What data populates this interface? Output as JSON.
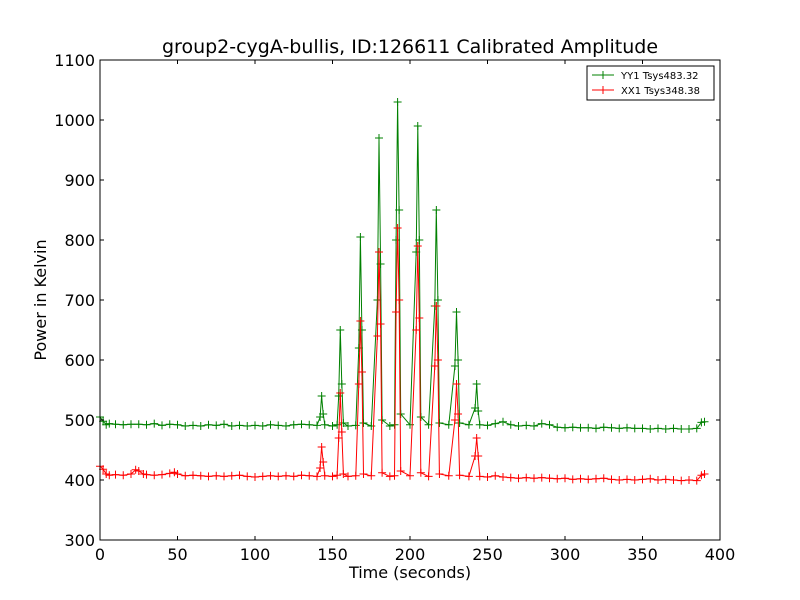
{
  "chart_data": {
    "type": "line",
    "title": "group2-cygA-bullis, ID:126611 Calibrated Amplitude",
    "xlabel": "Time (seconds)",
    "ylabel": "Power in Kelvin",
    "xlim": [
      0,
      400
    ],
    "ylim": [
      300,
      1100
    ],
    "xticks": [
      0,
      50,
      100,
      150,
      200,
      250,
      300,
      350,
      400
    ],
    "yticks": [
      300,
      400,
      500,
      600,
      700,
      800,
      900,
      1000,
      1100
    ],
    "grid": false,
    "legend_position": "top-right",
    "marker": "plus",
    "series": [
      {
        "name": "YY1 Tsys483.32",
        "color": "#008000",
        "points": [
          [
            0,
            505
          ],
          [
            2,
            498
          ],
          [
            4,
            492
          ],
          [
            6,
            494
          ],
          [
            10,
            493
          ],
          [
            15,
            492
          ],
          [
            20,
            493
          ],
          [
            25,
            493
          ],
          [
            30,
            492
          ],
          [
            35,
            494
          ],
          [
            40,
            491
          ],
          [
            45,
            493
          ],
          [
            50,
            492
          ],
          [
            55,
            490
          ],
          [
            60,
            491
          ],
          [
            65,
            490
          ],
          [
            70,
            492
          ],
          [
            75,
            491
          ],
          [
            80,
            493
          ],
          [
            85,
            490
          ],
          [
            90,
            491
          ],
          [
            95,
            490
          ],
          [
            100,
            491
          ],
          [
            105,
            490
          ],
          [
            110,
            492
          ],
          [
            115,
            491
          ],
          [
            120,
            490
          ],
          [
            125,
            492
          ],
          [
            130,
            493
          ],
          [
            135,
            492
          ],
          [
            140,
            491
          ],
          [
            142,
            505
          ],
          [
            143,
            540
          ],
          [
            144,
            510
          ],
          [
            145,
            492
          ],
          [
            150,
            490
          ],
          [
            153,
            492
          ],
          [
            154,
            540
          ],
          [
            155,
            650
          ],
          [
            156,
            560
          ],
          [
            157,
            495
          ],
          [
            160,
            490
          ],
          [
            165,
            491
          ],
          [
            167,
            620
          ],
          [
            168,
            805
          ],
          [
            169,
            650
          ],
          [
            170,
            495
          ],
          [
            175,
            490
          ],
          [
            179,
            700
          ],
          [
            180,
            970
          ],
          [
            181,
            760
          ],
          [
            182,
            500
          ],
          [
            187,
            490
          ],
          [
            190,
            492
          ],
          [
            191,
            800
          ],
          [
            192,
            1030
          ],
          [
            193,
            850
          ],
          [
            194,
            510
          ],
          [
            200,
            492
          ],
          [
            204,
            780
          ],
          [
            205,
            990
          ],
          [
            206,
            800
          ],
          [
            207,
            505
          ],
          [
            212,
            492
          ],
          [
            216,
            690
          ],
          [
            217,
            850
          ],
          [
            218,
            700
          ],
          [
            219,
            495
          ],
          [
            225,
            492
          ],
          [
            229,
            590
          ],
          [
            230,
            680
          ],
          [
            231,
            600
          ],
          [
            232,
            495
          ],
          [
            238,
            492
          ],
          [
            242,
            520
          ],
          [
            243,
            560
          ],
          [
            244,
            515
          ],
          [
            245,
            492
          ],
          [
            250,
            491
          ],
          [
            255,
            494
          ],
          [
            260,
            497
          ],
          [
            265,
            492
          ],
          [
            270,
            490
          ],
          [
            275,
            491
          ],
          [
            280,
            490
          ],
          [
            285,
            494
          ],
          [
            290,
            492
          ],
          [
            295,
            488
          ],
          [
            300,
            487
          ],
          [
            305,
            488
          ],
          [
            310,
            487
          ],
          [
            315,
            487
          ],
          [
            320,
            486
          ],
          [
            325,
            488
          ],
          [
            330,
            487
          ],
          [
            335,
            486
          ],
          [
            340,
            487
          ],
          [
            345,
            486
          ],
          [
            350,
            486
          ],
          [
            355,
            485
          ],
          [
            360,
            486
          ],
          [
            365,
            485
          ],
          [
            370,
            486
          ],
          [
            375,
            485
          ],
          [
            380,
            485
          ],
          [
            385,
            486
          ],
          [
            388,
            496
          ],
          [
            390,
            497
          ]
        ]
      },
      {
        "name": "XX1 Tsys348.38",
        "color": "#ff0000",
        "points": [
          [
            0,
            423
          ],
          [
            2,
            418
          ],
          [
            4,
            410
          ],
          [
            6,
            408
          ],
          [
            10,
            409
          ],
          [
            15,
            408
          ],
          [
            20,
            410
          ],
          [
            23,
            417
          ],
          [
            25,
            415
          ],
          [
            28,
            410
          ],
          [
            30,
            409
          ],
          [
            35,
            408
          ],
          [
            40,
            409
          ],
          [
            45,
            411
          ],
          [
            48,
            413
          ],
          [
            50,
            410
          ],
          [
            55,
            407
          ],
          [
            60,
            408
          ],
          [
            65,
            407
          ],
          [
            70,
            406
          ],
          [
            75,
            407
          ],
          [
            80,
            406
          ],
          [
            85,
            407
          ],
          [
            90,
            408
          ],
          [
            95,
            406
          ],
          [
            100,
            405
          ],
          [
            105,
            406
          ],
          [
            110,
            407
          ],
          [
            115,
            406
          ],
          [
            120,
            407
          ],
          [
            125,
            406
          ],
          [
            130,
            408
          ],
          [
            135,
            407
          ],
          [
            140,
            406
          ],
          [
            142,
            420
          ],
          [
            143,
            455
          ],
          [
            144,
            430
          ],
          [
            145,
            407
          ],
          [
            150,
            406
          ],
          [
            153,
            408
          ],
          [
            154,
            470
          ],
          [
            155,
            545
          ],
          [
            156,
            480
          ],
          [
            157,
            410
          ],
          [
            160,
            406
          ],
          [
            165,
            407
          ],
          [
            167,
            560
          ],
          [
            168,
            665
          ],
          [
            169,
            580
          ],
          [
            170,
            410
          ],
          [
            175,
            407
          ],
          [
            179,
            640
          ],
          [
            180,
            780
          ],
          [
            181,
            660
          ],
          [
            182,
            412
          ],
          [
            187,
            406
          ],
          [
            190,
            407
          ],
          [
            191,
            680
          ],
          [
            192,
            820
          ],
          [
            193,
            700
          ],
          [
            194,
            415
          ],
          [
            200,
            407
          ],
          [
            204,
            650
          ],
          [
            205,
            790
          ],
          [
            206,
            670
          ],
          [
            207,
            412
          ],
          [
            212,
            406
          ],
          [
            216,
            590
          ],
          [
            217,
            690
          ],
          [
            218,
            600
          ],
          [
            219,
            410
          ],
          [
            225,
            407
          ],
          [
            229,
            500
          ],
          [
            230,
            560
          ],
          [
            231,
            510
          ],
          [
            232,
            408
          ],
          [
            238,
            406
          ],
          [
            242,
            440
          ],
          [
            243,
            470
          ],
          [
            244,
            440
          ],
          [
            245,
            406
          ],
          [
            250,
            405
          ],
          [
            255,
            407
          ],
          [
            260,
            405
          ],
          [
            265,
            404
          ],
          [
            270,
            403
          ],
          [
            275,
            404
          ],
          [
            280,
            403
          ],
          [
            285,
            404
          ],
          [
            290,
            403
          ],
          [
            295,
            402
          ],
          [
            300,
            403
          ],
          [
            305,
            401
          ],
          [
            310,
            402
          ],
          [
            315,
            401
          ],
          [
            320,
            402
          ],
          [
            325,
            403
          ],
          [
            330,
            401
          ],
          [
            335,
            400
          ],
          [
            340,
            401
          ],
          [
            345,
            400
          ],
          [
            350,
            401
          ],
          [
            355,
            402
          ],
          [
            360,
            400
          ],
          [
            365,
            401
          ],
          [
            370,
            400
          ],
          [
            375,
            399
          ],
          [
            380,
            400
          ],
          [
            385,
            399
          ],
          [
            388,
            408
          ],
          [
            390,
            410
          ]
        ]
      }
    ]
  }
}
